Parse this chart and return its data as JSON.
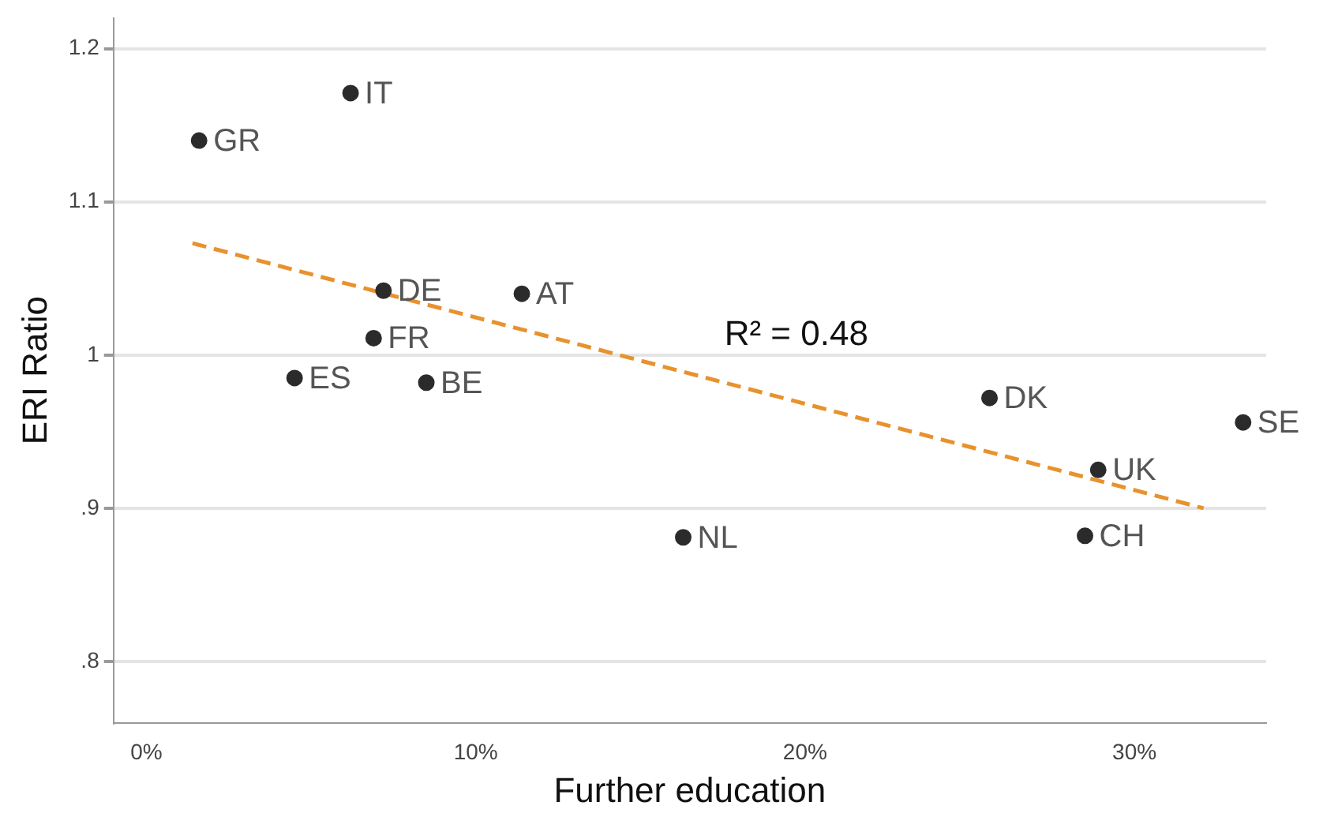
{
  "chart_data": {
    "type": "scatter",
    "xlabel": "Further education",
    "ylabel": "ERI Ratio",
    "xlim": [
      -1,
      34
    ],
    "ylim": [
      0.76,
      1.22
    ],
    "xticks": [
      {
        "value": 0,
        "label": "0%"
      },
      {
        "value": 10,
        "label": "10%"
      },
      {
        "value": 20,
        "label": "20%"
      },
      {
        "value": 30,
        "label": "30%"
      }
    ],
    "yticks": [
      {
        "value": 0.8,
        "label": ".8"
      },
      {
        "value": 0.9,
        "label": ".9"
      },
      1,
      1.1,
      1.2
    ],
    "grid": "y",
    "legend": false,
    "marker": "circle",
    "series": [
      {
        "type": "scatter",
        "color": "#2b2b2b",
        "x": [
          6.2,
          1.6,
          7.2,
          11.4,
          6.9,
          4.5,
          8.5,
          16.3,
          25.6,
          33.3,
          28.9,
          28.5
        ],
        "values": [
          1.171,
          1.14,
          1.042,
          1.04,
          1.011,
          0.985,
          0.982,
          0.881,
          0.972,
          0.956,
          0.925,
          0.882
        ]
      },
      {
        "type": "line",
        "color": "#e8922e",
        "line_style": "dashed",
        "marker": "none",
        "x": [
          1.4,
          32.1
        ],
        "values": [
          1.073,
          0.9
        ]
      }
    ],
    "annotations": [
      {
        "text": "IT",
        "x": 6.2,
        "y": 1.171
      },
      {
        "text": "GR",
        "x": 1.6,
        "y": 1.14
      },
      {
        "text": "DE",
        "x": 7.2,
        "y": 1.042
      },
      {
        "text": "AT",
        "x": 11.4,
        "y": 1.04
      },
      {
        "text": "FR",
        "x": 6.9,
        "y": 1.011
      },
      {
        "text": "ES",
        "x": 4.5,
        "y": 0.985
      },
      {
        "text": "BE",
        "x": 8.5,
        "y": 0.982
      },
      {
        "text": "NL",
        "x": 16.3,
        "y": 0.881
      },
      {
        "text": "DK",
        "x": 25.6,
        "y": 0.972
      },
      {
        "text": "SE",
        "x": 33.3,
        "y": 0.956
      },
      {
        "text": "UK",
        "x": 28.9,
        "y": 0.925
      },
      {
        "text": "CH",
        "x": 28.5,
        "y": 0.882
      },
      "R² = 0.48"
    ]
  }
}
